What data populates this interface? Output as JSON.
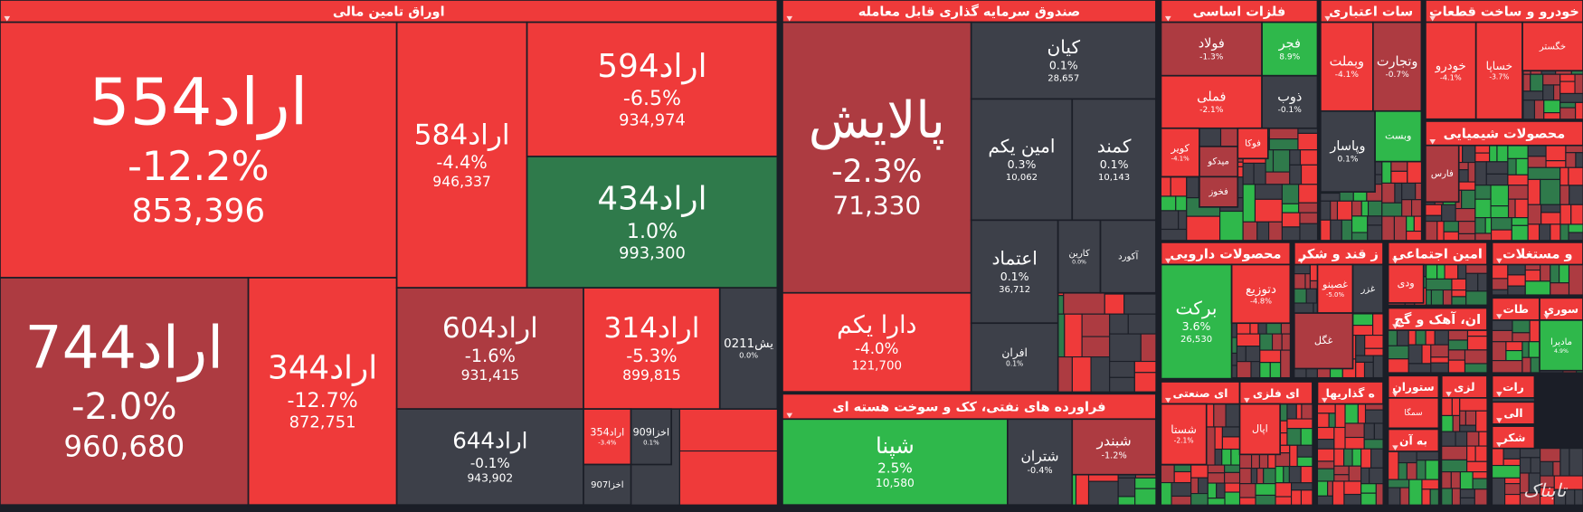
{
  "sectors": [
    {
      "title": "اوراق تامین مالی",
      "tiles": [
        {
          "name": "اراد554",
          "change": "-12.2%",
          "value": "853,396"
        },
        {
          "name": "اراد744",
          "change": "-2.0%",
          "value": "960,680"
        },
        {
          "name": "اراد344",
          "change": "-12.7%",
          "value": "872,751"
        },
        {
          "name": "اراد584",
          "change": "-4.4%",
          "value": "946,337"
        },
        {
          "name": "اراد594",
          "change": "-6.5%",
          "value": "934,974"
        },
        {
          "name": "اراد434",
          "change": "1.0%",
          "value": "993,300"
        },
        {
          "name": "اراد604",
          "change": "-1.6%",
          "value": "931,415"
        },
        {
          "name": "اراد314",
          "change": "-5.3%",
          "value": "899,815"
        },
        {
          "name": "یش0211",
          "change": "0.0%"
        },
        {
          "name": "اراد644",
          "change": "-0.1%",
          "value": "943,902"
        },
        {
          "name": "اراد354",
          "change": "-3.4%"
        },
        {
          "name": "اخزا909",
          "change": "0.1%"
        },
        {
          "name": "اخزا907"
        }
      ]
    },
    {
      "title": "صندوق سرمایه گذاری قابل معامله",
      "tiles": [
        {
          "name": "پالایش",
          "change": "-2.3%",
          "value": "71,330"
        },
        {
          "name": "دارا یکم",
          "change": "-4.0%",
          "value": "121,700"
        },
        {
          "name": "کیان",
          "change": "0.1%",
          "value": "28,657"
        },
        {
          "name": "امین یکم",
          "change": "0.3%",
          "value": "10,062"
        },
        {
          "name": "کمند",
          "change": "0.1%",
          "value": "10,143"
        },
        {
          "name": "اعتماد",
          "change": "0.1%",
          "value": "36,712"
        },
        {
          "name": "کارین",
          "change": "0.0%"
        },
        {
          "name": "آکورد"
        },
        {
          "name": "افران",
          "change": "0.1%"
        }
      ]
    },
    {
      "title": "فراورده های نفتی، کک و سوخت هسته ای",
      "tiles": [
        {
          "name": "شپنا",
          "change": "2.5%",
          "value": "10,580"
        },
        {
          "name": "شتران",
          "change": "-0.4%"
        },
        {
          "name": "شبندر",
          "change": "-1.2%"
        }
      ]
    },
    {
      "title": "فلزات اساسی",
      "tiles": [
        {
          "name": "فولاد",
          "change": "-1.3%"
        },
        {
          "name": "فجر",
          "change": "8.9%"
        },
        {
          "name": "فملی",
          "change": "-2.1%"
        },
        {
          "name": "ذوب",
          "change": "-0.1%"
        },
        {
          "name": "کویر",
          "change": "-4.1%"
        },
        {
          "name": "میدکو"
        },
        {
          "name": "فوکا"
        },
        {
          "name": "فخوز"
        }
      ]
    },
    {
      "title": "سات اعتباری",
      "tiles": [
        {
          "name": "وبملت",
          "change": "-4.1%"
        },
        {
          "name": "وتجارت",
          "change": "-0.7%"
        },
        {
          "name": "وپاسار",
          "change": "0.1%"
        },
        {
          "name": "وبست"
        }
      ]
    },
    {
      "title": "خودرو و ساخت قطعات",
      "tiles": [
        {
          "name": "خودرو",
          "change": "-4.1%"
        },
        {
          "name": "خساپا",
          "change": "-3.7%"
        },
        {
          "name": "خگستر"
        }
      ]
    },
    {
      "title": "محصولات شیمیایی",
      "tiles": [
        {
          "name": "فارس"
        }
      ]
    },
    {
      "title": "محصولات دارویی",
      "tiles": [
        {
          "name": "برکت",
          "change": "3.6%",
          "value": "26,530"
        },
        {
          "name": "دتوزیع",
          "change": "-4.8%"
        }
      ]
    },
    {
      "title": "ز قند و شکر",
      "tiles": [
        {
          "name": "غصینو",
          "change": "-5.0%"
        },
        {
          "name": "غزر"
        },
        {
          "name": "غگل"
        }
      ]
    },
    {
      "title": "امین اجتماعی",
      "tiles": [
        {
          "name": "ودی"
        }
      ]
    },
    {
      "title": "و مستغلات",
      "tiles": []
    },
    {
      "title": "ان، آهک و گچ",
      "tiles": []
    },
    {
      "title": "طات",
      "tiles": []
    },
    {
      "title": "سوری",
      "tiles": [
        {
          "name": "مادیرا",
          "change": "4.9%"
        }
      ]
    },
    {
      "title": "ای صنعتی",
      "tiles": [
        {
          "name": "شستا",
          "change": "-2.1%"
        }
      ]
    },
    {
      "title": "ای فلزی",
      "tiles": [
        {
          "name": "اپال"
        }
      ]
    },
    {
      "title": "ه گذاریها",
      "tiles": []
    },
    {
      "title": "ستوران",
      "tiles": [
        {
          "name": "سمگا"
        }
      ]
    },
    {
      "title": "لزی",
      "tiles": []
    },
    {
      "title": "رات",
      "tiles": []
    },
    {
      "title": "الی",
      "tiles": []
    },
    {
      "title": "شکر",
      "tiles": []
    },
    {
      "title": "به آن",
      "tiles": []
    }
  ],
  "watermark": "تابناک"
}
